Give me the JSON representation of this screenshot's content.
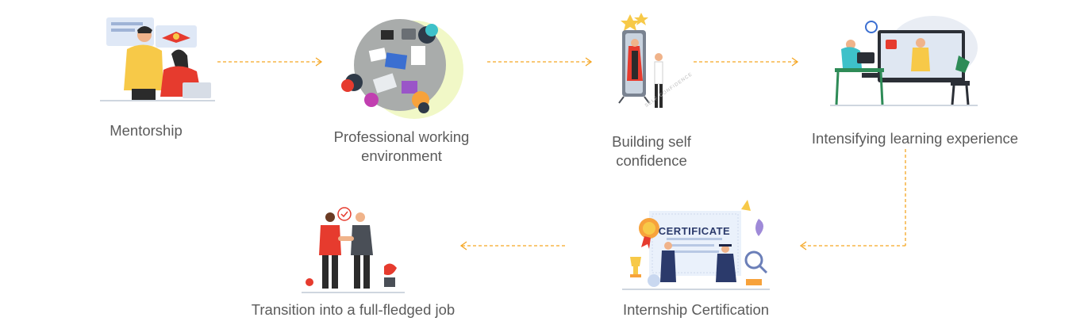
{
  "steps": [
    {
      "label_lines": [
        "Mentorship"
      ],
      "icon": "mentor-icon"
    },
    {
      "label_lines": [
        "Professional working",
        "environment"
      ],
      "icon": "team-desk-icon"
    },
    {
      "label_lines": [
        "Building self",
        "confidence"
      ],
      "icon": "mirror-icon"
    },
    {
      "label_lines": [
        "Intensifying learning experience"
      ],
      "icon": "online-class-icon"
    },
    {
      "label_lines": [
        "Internship Certification"
      ],
      "icon": "certificate-icon"
    },
    {
      "label_lines": [
        "Transition into a full-fledged job"
      ],
      "icon": "handshake-icon"
    }
  ],
  "certificate_text": "CERTIFICATE",
  "mirror_caption": "SELF-CONFIDENCE",
  "colors": {
    "arrow": "#f5a623",
    "label": "#5b5b5b",
    "accent_yellow": "#f7c948",
    "accent_red": "#e63b2e",
    "accent_blue": "#3b6fd1"
  }
}
